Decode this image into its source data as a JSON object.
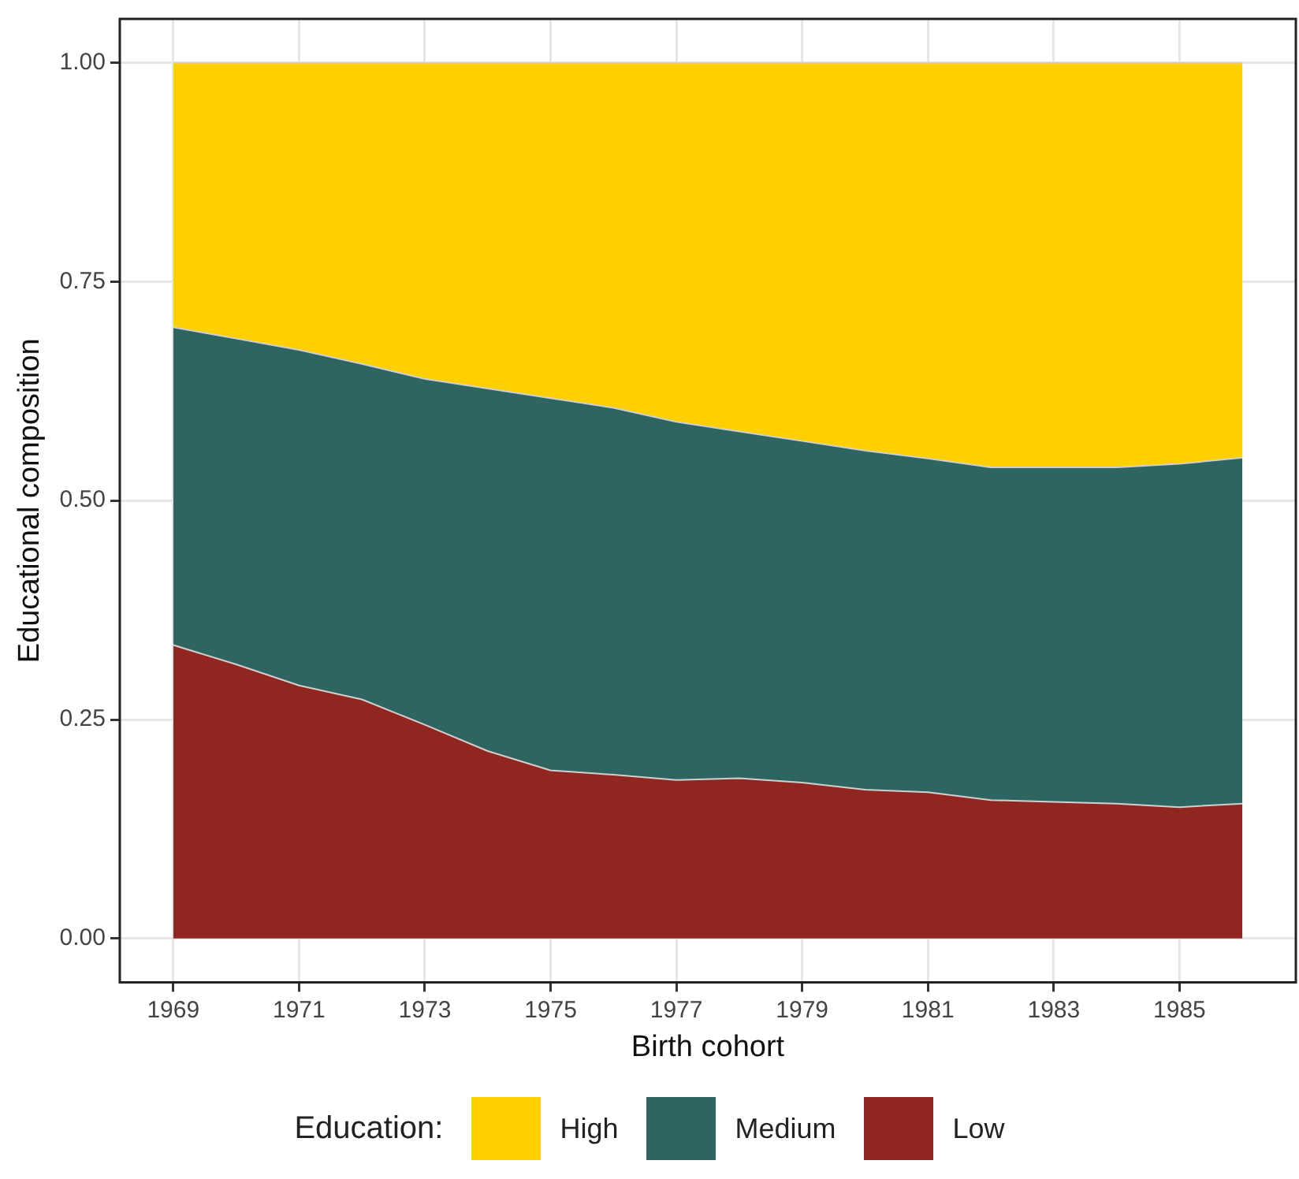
{
  "chart_data": {
    "type": "area",
    "stacked": true,
    "xlabel": "Birth cohort",
    "ylabel": "Educational composition",
    "legend_title": "Education:",
    "legend": "bottom",
    "grid": true,
    "x": [
      1969,
      1970,
      1971,
      1972,
      1973,
      1974,
      1975,
      1976,
      1977,
      1978,
      1979,
      1980,
      1981,
      1982,
      1983,
      1984,
      1985,
      1986
    ],
    "xlim": [
      1968.15,
      1986.85
    ],
    "xticks": [
      1969,
      1971,
      1973,
      1975,
      1977,
      1979,
      1981,
      1983,
      1985
    ],
    "ylim": [
      -0.05,
      1.05
    ],
    "yticks": [
      {
        "value": 0,
        "label": "0.00"
      },
      {
        "value": 0.25,
        "label": "0.25"
      },
      {
        "value": 0.5,
        "label": "0.50"
      },
      {
        "value": 0.75,
        "label": "0.75"
      },
      {
        "value": 1,
        "label": "1.00"
      }
    ],
    "series": [
      {
        "name": "Low",
        "color": "#8f261f",
        "values": [
          0.335,
          0.313,
          0.289,
          0.273,
          0.244,
          0.214,
          0.192,
          0.187,
          0.181,
          0.183,
          0.178,
          0.17,
          0.167,
          0.158,
          0.156,
          0.154,
          0.15,
          0.154
        ]
      },
      {
        "name": "Medium",
        "color": "#2e6561",
        "values": [
          0.363,
          0.372,
          0.383,
          0.383,
          0.395,
          0.414,
          0.425,
          0.419,
          0.409,
          0.396,
          0.39,
          0.387,
          0.381,
          0.38,
          0.382,
          0.384,
          0.392,
          0.395
        ]
      },
      {
        "name": "High",
        "color": "#ffd000",
        "values": [
          0.302,
          0.315,
          0.328,
          0.344,
          0.361,
          0.372,
          0.383,
          0.394,
          0.41,
          0.421,
          0.432,
          0.443,
          0.452,
          0.462,
          0.462,
          0.462,
          0.458,
          0.451
        ]
      }
    ]
  }
}
